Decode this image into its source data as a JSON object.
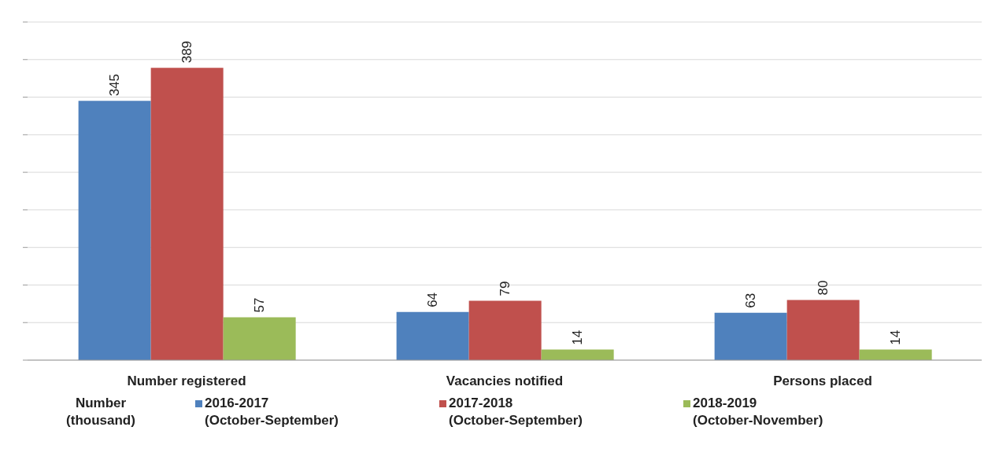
{
  "chart_data": {
    "type": "bar",
    "categories": [
      "Number registered",
      "Vacancies notified",
      "Persons placed"
    ],
    "series": [
      {
        "name": "2016-2017\n(October-September)",
        "color": "#4f81bd",
        "values": [
          345,
          64,
          63
        ]
      },
      {
        "name": "2017-2018\n(October-September)",
        "color": "#c0504d",
        "values": [
          389,
          79,
          80
        ]
      },
      {
        "name": "2018-2019\n(October-November)",
        "color": "#9bbb59",
        "values": [
          57,
          14,
          14
        ]
      }
    ],
    "legend_title": "Number\n(thousand)",
    "ylim": [
      0,
      450
    ],
    "yticks": [
      {
        "value": 0,
        "label": null
      },
      {
        "value": 50,
        "label": null
      },
      {
        "value": 100,
        "label": null
      },
      {
        "value": 150,
        "label": null
      },
      {
        "value": 200,
        "label": null
      },
      {
        "value": 250,
        "label": null
      },
      {
        "value": 300,
        "label": null
      },
      {
        "value": 350,
        "label": null
      },
      {
        "value": 400,
        "label": null
      },
      {
        "value": 450,
        "label": null
      }
    ],
    "grid": "y",
    "legend": "bottom",
    "data_labels": true
  }
}
